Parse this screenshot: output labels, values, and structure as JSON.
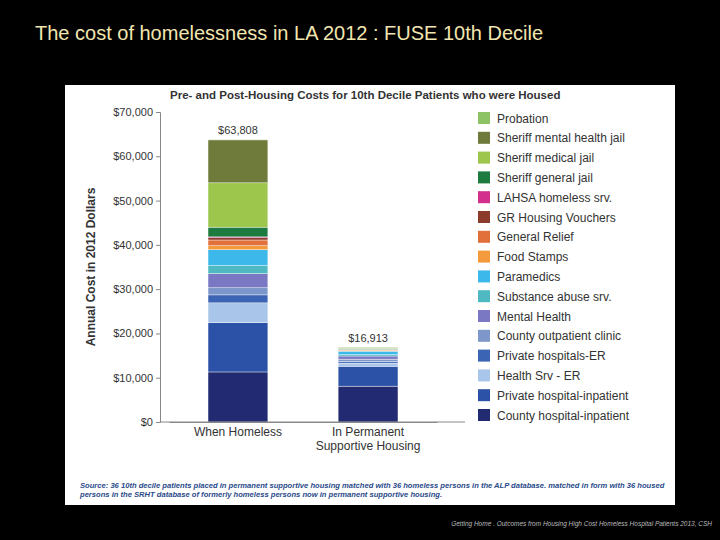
{
  "slide": {
    "title": "The cost of homelessness in LA 2012 : FUSE 10th Decile",
    "footer": "Getting Home . Outcomes from Housing High Cost Homeless Hospital Patients 2013, CSH"
  },
  "chart_data": {
    "type": "bar",
    "stacked": true,
    "title": "Pre- and Post-Housing Costs for 10th Decile Patients who were Housed",
    "y_label": "Annual Cost in 2012 Dollars",
    "source": "Source: 36 10th decile patients placed in permanent supportive housing matched with 36 homeless persons in the ALP database. matched in form with 36 housed persons in the SRHT database of formerly homeless persons now in permanent supportive housing.",
    "categories": [
      "When Homeless",
      "In Permanent Supportive Housing"
    ],
    "annotations": [
      "$63,808",
      "$16,913"
    ],
    "ylim": [
      0,
      70000
    ],
    "yticks": [
      {
        "value": 0,
        "label": "$0"
      },
      {
        "value": 10000,
        "label": "$10,000"
      },
      {
        "value": 20000,
        "label": "$20,000"
      },
      {
        "value": 30000,
        "label": "$30,000"
      },
      {
        "value": 40000,
        "label": "$40,000"
      },
      {
        "value": 50000,
        "label": "$50,000"
      },
      {
        "value": 60000,
        "label": "$60,000"
      },
      {
        "value": 70000,
        "label": "$70,000"
      }
    ],
    "grid": false,
    "legend": "right",
    "series": [
      {
        "name": "County hospital-inpatient",
        "color": "#222b72",
        "values": [
          11300,
          8100
        ]
      },
      {
        "name": "Private hospital-inpatient",
        "color": "#2c52a8",
        "values": [
          11100,
          4500
        ]
      },
      {
        "name": "Health Srv - ER",
        "color": "#a9c5ea",
        "values": [
          4500,
          700
        ]
      },
      {
        "name": "Private hospitals-ER",
        "color": "#3c64b4",
        "values": [
          1800,
          400
        ]
      },
      {
        "name": "County outpatient clinic",
        "color": "#7d97ca",
        "values": [
          1600,
          500
        ]
      },
      {
        "name": "Mental Health",
        "color": "#7a78c2",
        "values": [
          3200,
          700
        ]
      },
      {
        "name": "Substance abuse srv.",
        "color": "#4fb9c2",
        "values": [
          1800,
          300
        ]
      },
      {
        "name": "Paramedics",
        "color": "#3cb8ea",
        "values": [
          3600,
          800
        ]
      },
      {
        "name": "Food Stamps",
        "color": "#f39b3c",
        "values": [
          900,
          200
        ]
      },
      {
        "name": "General Relief",
        "color": "#e2703a",
        "values": [
          1300,
          100
        ]
      },
      {
        "name": "GR Housing Vouchers",
        "color": "#8c3a2a",
        "values": [
          500,
          0
        ]
      },
      {
        "name": "LAHSA homeless srv.",
        "color": "#d2308c",
        "values": [
          200,
          100
        ]
      },
      {
        "name": "Sheriff general jail",
        "color": "#1e7b40",
        "values": [
          2200,
          200
        ]
      },
      {
        "name": "Sheriff medical jail",
        "color": "#9cc64c",
        "values": [
          10000,
          100
        ]
      },
      {
        "name": "Sheriff mental health jail",
        "color": "#6f7b3a",
        "values": [
          9700,
          150
        ]
      },
      {
        "name": "Probation",
        "color": "#8dc265",
        "values": [
          108,
          63
        ]
      }
    ]
  }
}
